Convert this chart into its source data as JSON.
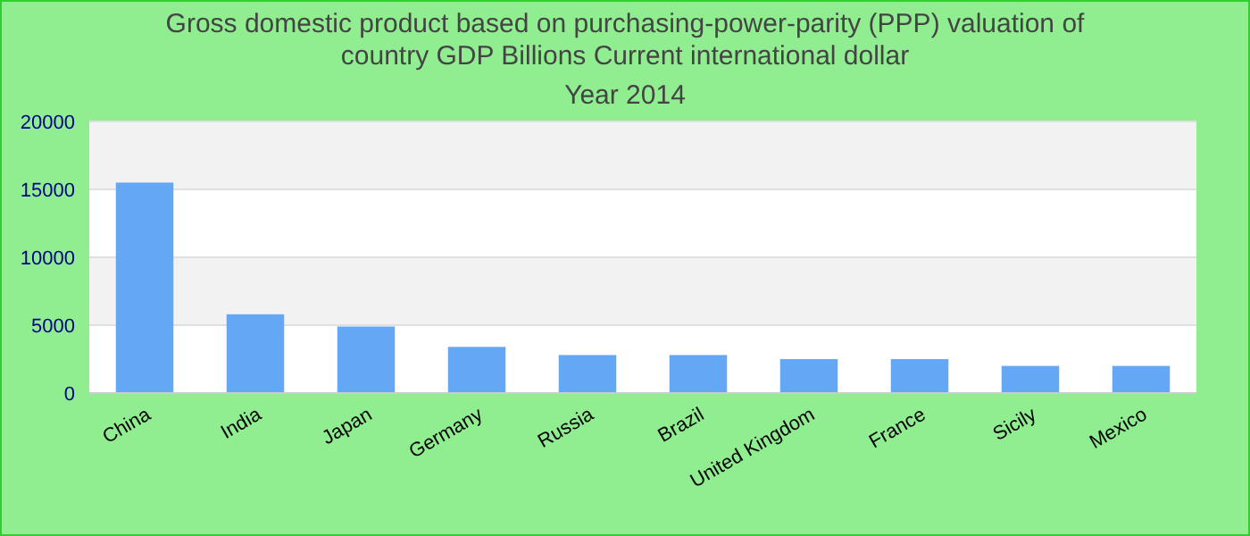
{
  "chart_data": {
    "type": "bar",
    "title": "Gross domestic product based on purchasing-power-parity (PPP) valuation of country GDP Billions Current international dollar",
    "subtitle": "Year 2014",
    "categories": [
      "China",
      "India",
      "Japan",
      "Germany",
      "Russia",
      "Brazil",
      "United Kingdom",
      "France",
      "Sicily",
      "Mexico"
    ],
    "values": [
      15500,
      5800,
      4900,
      3400,
      2800,
      2800,
      2500,
      2500,
      2000,
      2000
    ],
    "color": "#64a8f5",
    "ylim": [
      0,
      20000
    ],
    "yticks": [
      0,
      5000,
      10000,
      15000,
      20000
    ],
    "grid": "y"
  }
}
